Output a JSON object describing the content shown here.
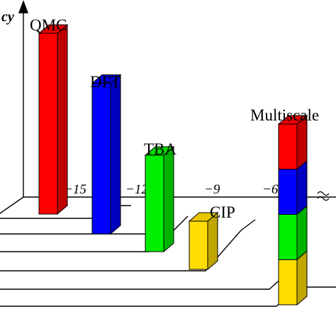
{
  "chart_data": {
    "type": "bar",
    "axis_title_fragment": "cy",
    "x_ticks": [
      "−15",
      "−12",
      "−9",
      "−6"
    ],
    "axis_break_symbol": "≈",
    "bars": [
      {
        "label": "QMC",
        "log10_scale": -15,
        "height": 3.0,
        "segments": [
          {
            "color": "#ff0000",
            "value": 3.0
          }
        ]
      },
      {
        "label": "DFT",
        "log10_scale": -12,
        "height": 2.5,
        "segments": [
          {
            "color": "#0000ff",
            "value": 2.5
          }
        ]
      },
      {
        "label": "TBA",
        "log10_scale": -9,
        "height": 1.6,
        "segments": [
          {
            "color": "#00ee00",
            "value": 1.6
          }
        ]
      },
      {
        "label": "CIP",
        "log10_scale": -6,
        "height": 0.8,
        "segments": [
          {
            "color": "#ffdd00",
            "value": 0.8
          }
        ]
      },
      {
        "label": "Multiscale",
        "log10_scale": null,
        "height": 3.0,
        "segments": [
          {
            "color": "#ffdd00",
            "value": 0.75
          },
          {
            "color": "#00ee00",
            "value": 0.75
          },
          {
            "color": "#0000ff",
            "value": 0.75
          },
          {
            "color": "#ff0000",
            "value": 0.75
          }
        ]
      }
    ]
  }
}
